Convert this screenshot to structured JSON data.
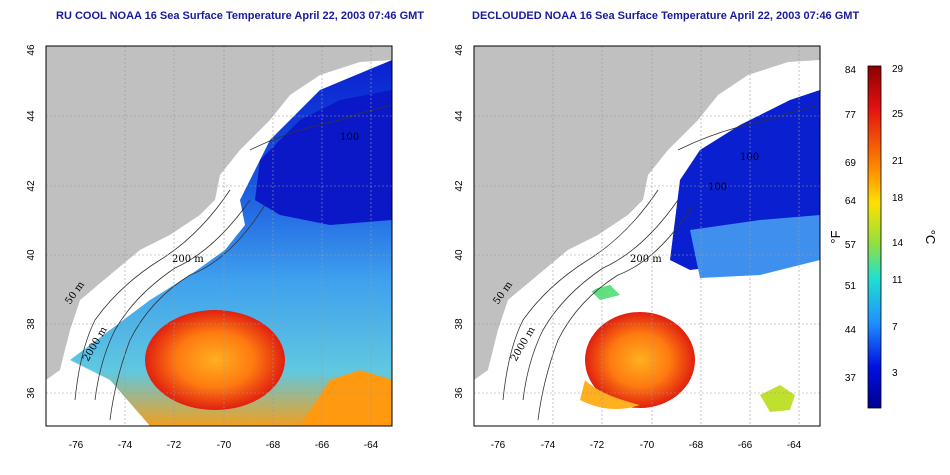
{
  "left_panel": {
    "title": "RU COOL NOAA 16 Sea Surface Temperature April 22, 2003 07:46 GMT",
    "contour_labels": [
      "50 m",
      "200 m",
      "2000 m",
      "100"
    ]
  },
  "right_panel": {
    "title": "DECLOUDED NOAA 16 Sea Surface Temperature April 22, 2003 07:46 GMT",
    "contour_labels": [
      "50 m",
      "200 m",
      "2000 m",
      "100",
      "100"
    ]
  },
  "axes": {
    "x_ticks": [
      "-76",
      "-74",
      "-72",
      "-70",
      "-68",
      "-66",
      "-64"
    ],
    "y_ticks": [
      "36",
      "38",
      "40",
      "42",
      "44",
      "46"
    ]
  },
  "colorbar": {
    "fahrenheit_ticks": [
      "84",
      "77",
      "69",
      "64",
      "57",
      "51",
      "44",
      "37"
    ],
    "celsius_ticks": [
      "29",
      "25",
      "21",
      "18",
      "14",
      "11",
      "7",
      "3"
    ],
    "unit_left": "°F",
    "unit_right": "°C",
    "colors": [
      "#ff0000",
      "#ff8000",
      "#ffff00",
      "#00ffff",
      "#0000ff",
      "#00008b"
    ]
  },
  "colors": {
    "land": "#c0c0c0",
    "cold_water": "#0a1fd0",
    "cool_water": "#2f8fe8",
    "mid_water": "#60d0f0",
    "warm_water": "#ff9a10",
    "hot_water": "#e01a10",
    "title": "#1a1a9e"
  }
}
